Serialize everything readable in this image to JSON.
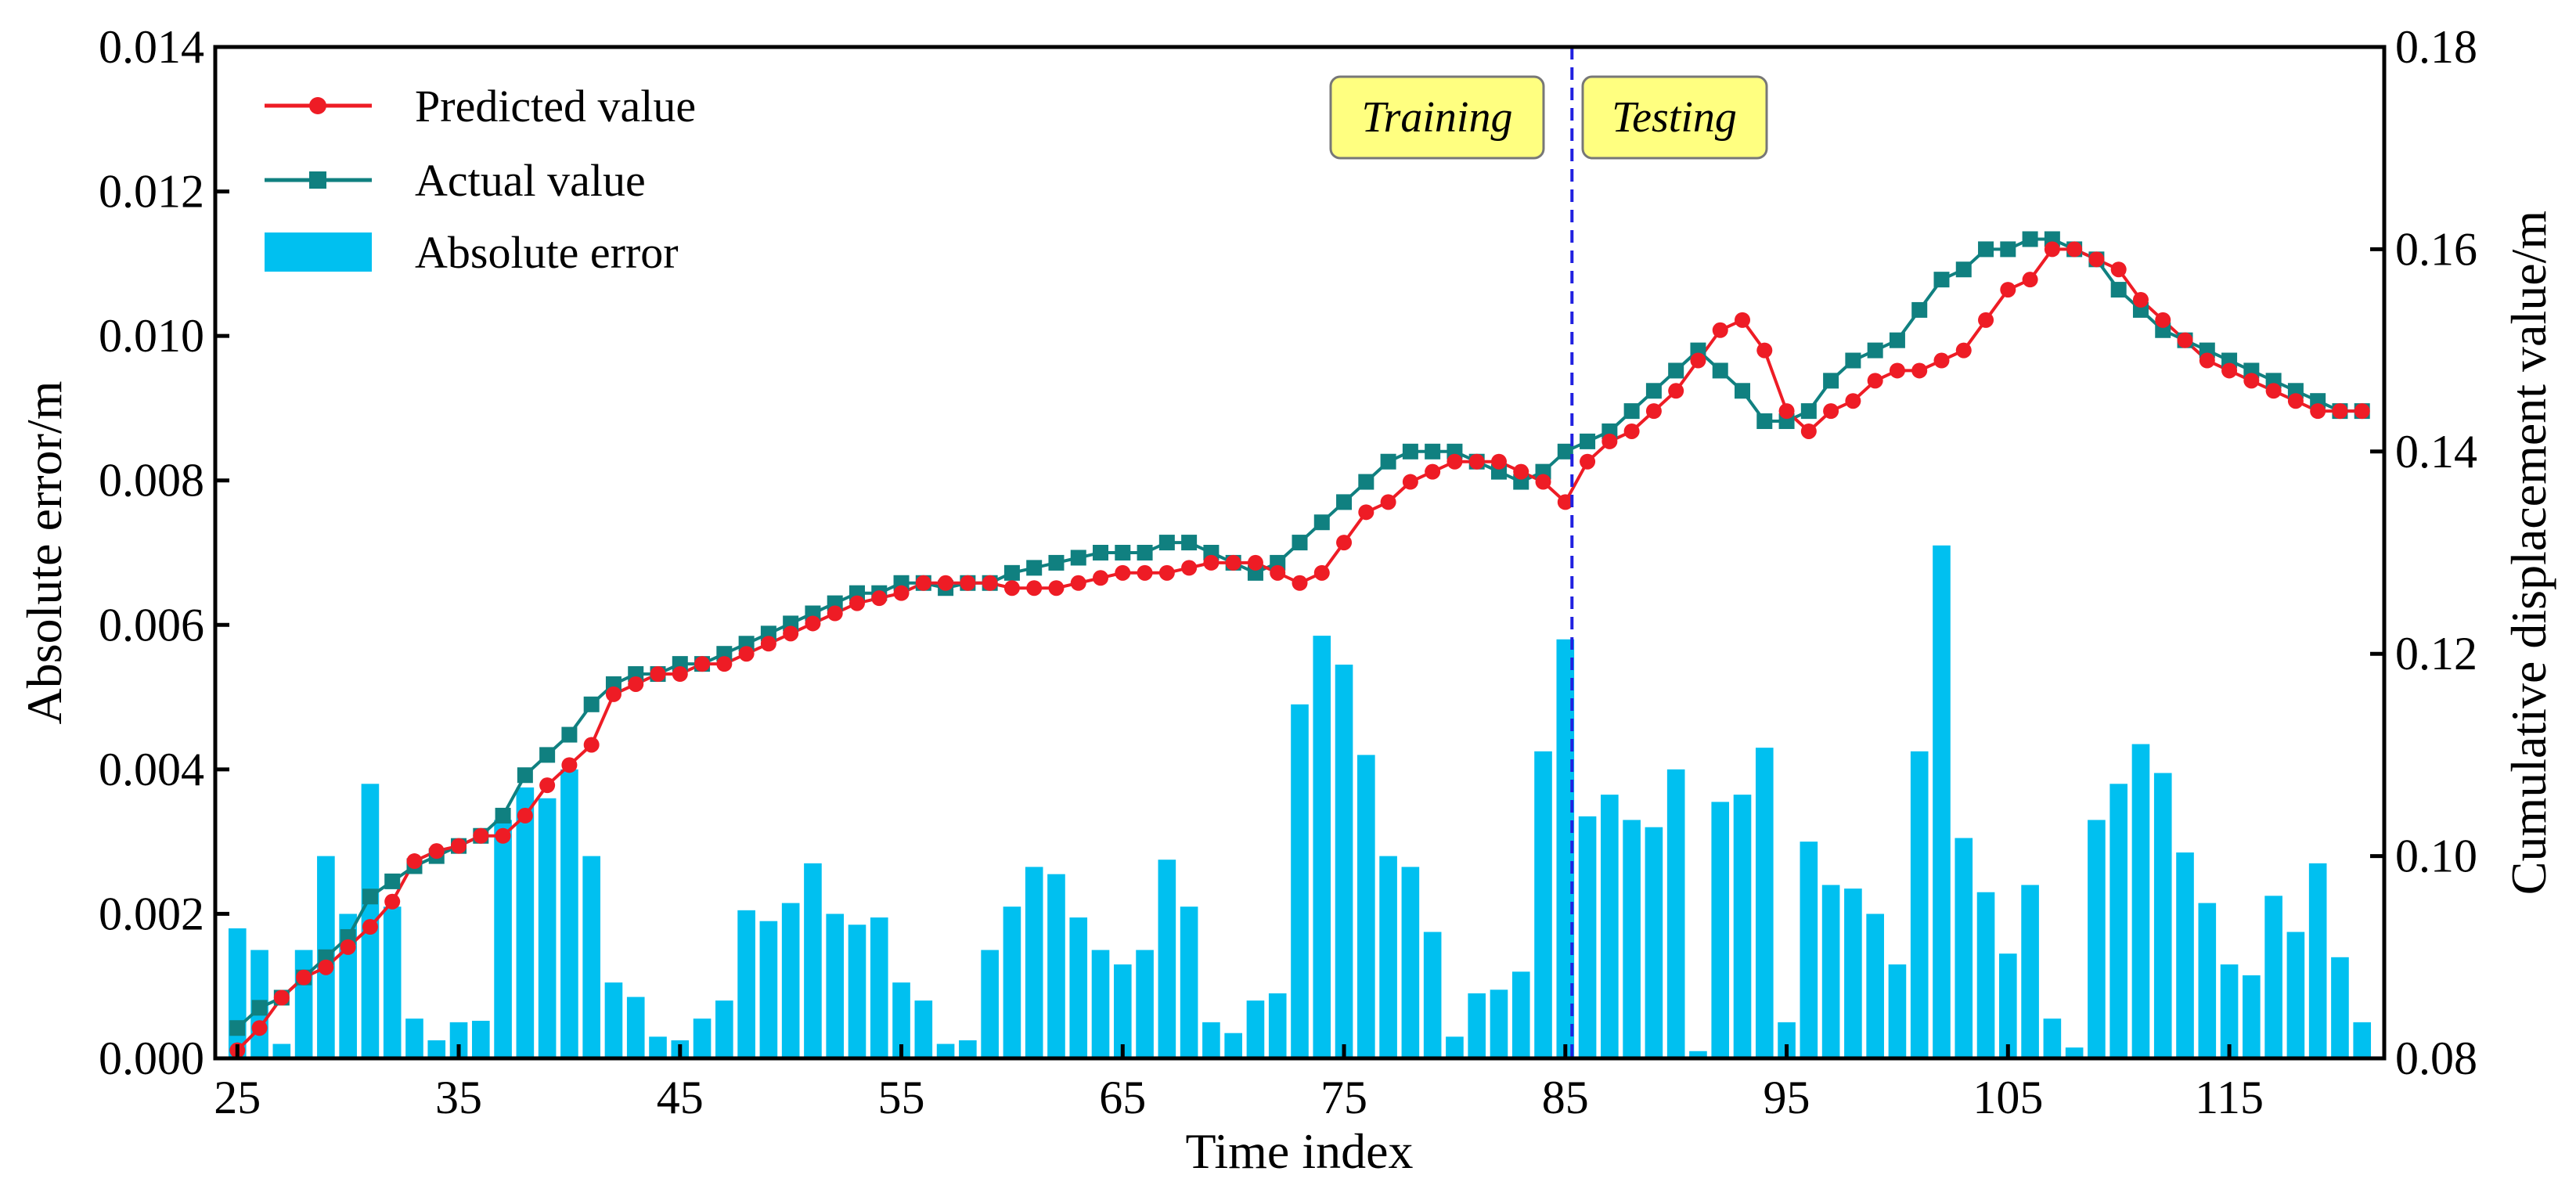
{
  "chart_data": {
    "type": "bar+line",
    "xlabel": "Time index",
    "ylabel_left": "Absolute error/m",
    "ylabel_right": "Cumulative displacement value/m",
    "x_range": [
      24,
      122
    ],
    "ylim_left": [
      0,
      0.014
    ],
    "ylim_right": [
      0.08,
      0.18
    ],
    "x_ticks": [
      25,
      35,
      45,
      55,
      65,
      75,
      85,
      95,
      105,
      115
    ],
    "x_tick_labels": [
      "25",
      "35",
      "45",
      "55",
      "65",
      "75",
      "85",
      "95",
      "105",
      "115"
    ],
    "y_left_ticks": [
      0,
      0.002,
      0.004,
      0.006,
      0.008,
      0.01,
      0.012,
      0.014
    ],
    "y_left_tick_labels": [
      "0.000",
      "0.002",
      "0.004",
      "0.006",
      "0.008",
      "0.010",
      "0.012",
      "0.014"
    ],
    "y_right_ticks": [
      0.08,
      0.1,
      0.12,
      0.14,
      0.16,
      0.18
    ],
    "y_right_tick_labels": [
      "0.08",
      "0.10",
      "0.12",
      "0.14",
      "0.16",
      "0.18"
    ],
    "split_x": 85.3,
    "annotations": {
      "training": "Training",
      "testing": "Testing"
    },
    "legend": {
      "predicted": "Predicted value",
      "actual": "Actual value",
      "error": "Absolute error",
      "placement": "top-left"
    },
    "colors": {
      "predicted": "#ee1c25",
      "actual": "#108080",
      "error": "#00c0f0",
      "split_line": "#2020e0",
      "annotation_bg": "#ffff80"
    },
    "x": [
      25,
      26,
      27,
      28,
      29,
      30,
      31,
      32,
      33,
      34,
      35,
      36,
      37,
      38,
      39,
      40,
      41,
      42,
      43,
      44,
      45,
      46,
      47,
      48,
      49,
      50,
      51,
      52,
      53,
      54,
      55,
      56,
      57,
      58,
      59,
      60,
      61,
      62,
      63,
      64,
      65,
      66,
      67,
      68,
      69,
      70,
      71,
      72,
      73,
      74,
      75,
      76,
      77,
      78,
      79,
      80,
      81,
      82,
      83,
      84,
      85,
      86,
      87,
      88,
      89,
      90,
      91,
      92,
      93,
      94,
      95,
      96,
      97,
      98,
      99,
      100,
      101,
      102,
      103,
      104,
      105,
      106,
      107,
      108,
      109,
      110,
      111,
      112,
      113,
      114,
      115,
      116,
      117,
      118,
      119,
      120,
      121
    ],
    "series": [
      {
        "name": "Predicted value",
        "axis": "right",
        "values": [
          0.0808,
          0.083,
          0.086,
          0.088,
          0.089,
          0.091,
          0.093,
          0.0955,
          0.0995,
          0.1005,
          0.101,
          0.102,
          0.102,
          0.104,
          0.107,
          0.109,
          0.111,
          0.116,
          0.117,
          0.118,
          0.118,
          0.119,
          0.119,
          0.12,
          0.121,
          0.122,
          0.123,
          0.124,
          0.125,
          0.1255,
          0.126,
          0.127,
          0.127,
          0.127,
          0.127,
          0.1265,
          0.1265,
          0.1265,
          0.127,
          0.1275,
          0.128,
          0.128,
          0.128,
          0.1285,
          0.129,
          0.129,
          0.129,
          0.128,
          0.127,
          0.128,
          0.131,
          0.134,
          0.135,
          0.137,
          0.138,
          0.139,
          0.139,
          0.139,
          0.138,
          0.137,
          0.135,
          0.139,
          0.141,
          0.142,
          0.144,
          0.146,
          0.149,
          0.152,
          0.153,
          0.15,
          0.144,
          0.142,
          0.144,
          0.145,
          0.147,
          0.148,
          0.148,
          0.149,
          0.15,
          0.153,
          0.156,
          0.157,
          0.16,
          0.16,
          0.159,
          0.158,
          0.155,
          0.153,
          0.151,
          0.149,
          0.148,
          0.147,
          0.146,
          0.145,
          0.144,
          0.144,
          0.144
        ]
      },
      {
        "name": "Actual value",
        "axis": "right",
        "values": [
          0.083,
          0.085,
          0.086,
          0.088,
          0.09,
          0.092,
          0.096,
          0.0975,
          0.099,
          0.1,
          0.101,
          0.102,
          0.104,
          0.108,
          0.11,
          0.112,
          0.115,
          0.117,
          0.118,
          0.118,
          0.119,
          0.119,
          0.12,
          0.121,
          0.122,
          0.123,
          0.124,
          0.125,
          0.126,
          0.126,
          0.127,
          0.127,
          0.1265,
          0.127,
          0.127,
          0.128,
          0.1285,
          0.129,
          0.1295,
          0.13,
          0.13,
          0.13,
          0.131,
          0.131,
          0.13,
          0.129,
          0.128,
          0.129,
          0.131,
          0.133,
          0.135,
          0.137,
          0.139,
          0.14,
          0.14,
          0.14,
          0.139,
          0.138,
          0.137,
          0.138,
          0.14,
          0.141,
          0.142,
          0.144,
          0.146,
          0.148,
          0.15,
          0.148,
          0.146,
          0.143,
          0.143,
          0.144,
          0.147,
          0.149,
          0.15,
          0.151,
          0.154,
          0.157,
          0.158,
          0.16,
          0.16,
          0.161,
          0.161,
          0.16,
          0.159,
          0.156,
          0.154,
          0.152,
          0.151,
          0.15,
          0.149,
          0.148,
          0.147,
          0.146,
          0.145,
          0.144,
          0.144
        ]
      },
      {
        "name": "Absolute error",
        "axis": "left",
        "type": "bar",
        "values": [
          0.0018,
          0.0015,
          0.0002,
          0.0015,
          0.0028,
          0.002,
          0.0038,
          0.0021,
          0.00055,
          0.00025,
          0.0005,
          0.00052,
          0.0033,
          0.00375,
          0.0036,
          0.004,
          0.0028,
          0.00105,
          0.00085,
          0.0003,
          0.00025,
          0.00055,
          0.0008,
          0.00205,
          0.0019,
          0.00215,
          0.0027,
          0.002,
          0.00185,
          0.00195,
          0.00105,
          0.0008,
          0.0002,
          0.00025,
          0.0015,
          0.0021,
          0.00265,
          0.00255,
          0.00195,
          0.0015,
          0.0013,
          0.0015,
          0.00275,
          0.0021,
          0.0005,
          0.00035,
          0.0008,
          0.0009,
          0.0049,
          0.00585,
          0.00545,
          0.0042,
          0.0028,
          0.00265,
          0.00175,
          0.0003,
          0.0009,
          0.00095,
          0.0012,
          0.00425,
          0.0058,
          0.00335,
          0.00365,
          0.0033,
          0.0032,
          0.004,
          0.0001,
          0.00355,
          0.00365,
          0.0043,
          0.0005,
          0.003,
          0.0024,
          0.00235,
          0.002,
          0.0013,
          0.00425,
          0.0071,
          0.00305,
          0.0023,
          0.00145,
          0.0024,
          0.00055,
          0.00015,
          0.0033,
          0.0038,
          0.00435,
          0.00395,
          0.00285,
          0.00215,
          0.0013,
          0.00115,
          0.00225,
          0.00175,
          0.0027,
          0.0014,
          0.0005
        ]
      }
    ]
  }
}
